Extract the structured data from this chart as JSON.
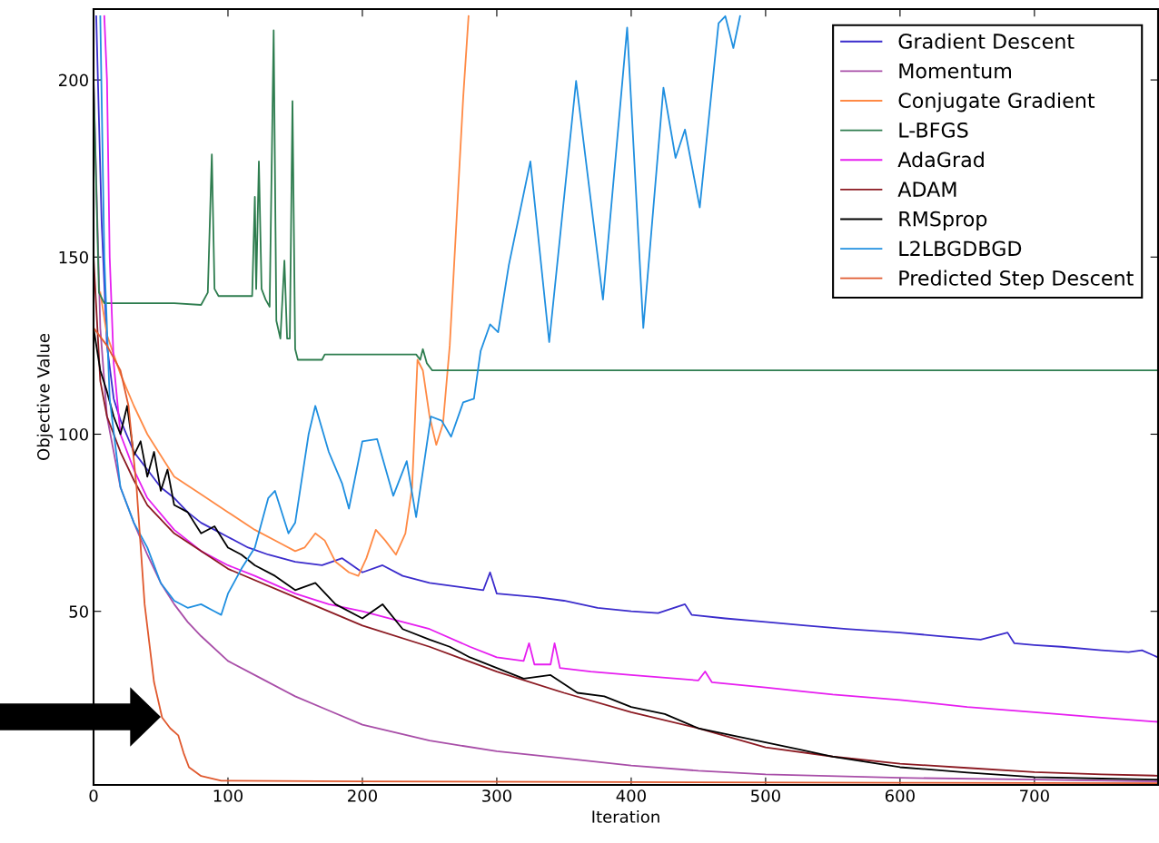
{
  "chart_data": {
    "type": "line",
    "xlabel": "Iteration",
    "ylabel": "Objective Value",
    "xlim": [
      0,
      792
    ],
    "ylim": [
      1,
      220
    ],
    "xticks": [
      0,
      100,
      200,
      300,
      400,
      500,
      600,
      700
    ],
    "yticks": [
      50,
      100,
      150,
      200
    ],
    "grid": false,
    "legend": "top right",
    "marker": "none",
    "line_style": "solid",
    "series": [
      {
        "name": "Gradient Descent",
        "color": "#3b2ccc",
        "x": [
          2,
          6,
          10,
          15,
          20,
          30,
          40,
          50,
          60,
          70,
          80,
          90,
          100,
          115,
          130,
          150,
          170,
          185,
          200,
          215,
          230,
          250,
          270,
          290,
          295,
          300,
          330,
          350,
          375,
          400,
          420,
          440,
          445,
          470,
          500,
          530,
          560,
          600,
          630,
          660,
          680,
          685,
          700,
          720,
          750,
          770,
          780,
          792
        ],
        "values": [
          218,
          160,
          125,
          110,
          104,
          95,
          90,
          85,
          82,
          78,
          75,
          73,
          71,
          68,
          66,
          64,
          63,
          65,
          61,
          63,
          60,
          58,
          57,
          56,
          61,
          55,
          54,
          53,
          51,
          50,
          49.5,
          52,
          49,
          48,
          47,
          46,
          45,
          44,
          43,
          42,
          44,
          41,
          40.5,
          40,
          39,
          38.5,
          39,
          37
        ]
      },
      {
        "name": "Momentum",
        "color": "#a84ea8",
        "x": [
          0,
          5,
          10,
          20,
          30,
          40,
          50,
          60,
          70,
          80,
          100,
          125,
          150,
          175,
          200,
          250,
          300,
          350,
          400,
          450,
          500,
          600,
          700,
          792
        ],
        "values": [
          200,
          130,
          105,
          85,
          75,
          66,
          58,
          52,
          47,
          43,
          36,
          31,
          26,
          22,
          18,
          13.5,
          10.5,
          8.5,
          6.5,
          5,
          4,
          3,
          2.5,
          2
        ]
      },
      {
        "name": "Conjugate Gradient",
        "color": "#ff8a45",
        "x": [
          5,
          10,
          20,
          30,
          40,
          60,
          80,
          100,
          120,
          140,
          150,
          157,
          165,
          172,
          180,
          190,
          197,
          203,
          210,
          217,
          225,
          232,
          237,
          241,
          245,
          250,
          255,
          260,
          265,
          270,
          275,
          279
        ],
        "values": [
          140,
          128,
          117,
          108,
          100,
          88,
          83,
          78,
          73,
          69,
          67,
          68,
          72,
          70,
          64,
          61,
          60,
          65,
          73,
          70,
          66,
          72,
          85,
          121,
          118,
          105,
          97,
          103,
          125,
          160,
          195,
          218
        ]
      },
      {
        "name": "L-BFGS",
        "color": "#2e7d4f",
        "x": [
          0,
          4,
          8,
          60,
          80,
          85,
          88,
          90,
          93,
          118,
          120,
          121,
          123,
          125,
          128,
          131,
          134,
          136,
          139,
          142,
          144,
          146,
          148,
          150,
          152,
          170,
          172,
          240,
          243,
          245,
          248,
          252,
          792
        ],
        "values": [
          200,
          140,
          137,
          137,
          136.5,
          140,
          179,
          141,
          139,
          139,
          167,
          141,
          177,
          141,
          138,
          136,
          214,
          132,
          127,
          149,
          127,
          127,
          194,
          124,
          121,
          121,
          122.5,
          122.5,
          121,
          124,
          120,
          118,
          118
        ]
      },
      {
        "name": "AdaGrad",
        "color": "#e61ef0",
        "x": [
          8,
          10,
          12,
          15,
          20,
          30,
          40,
          60,
          80,
          100,
          120,
          150,
          175,
          200,
          230,
          250,
          280,
          300,
          320,
          324,
          328,
          340,
          343,
          347,
          370,
          400,
          450,
          455,
          460,
          500,
          550,
          600,
          650,
          700,
          750,
          792
        ],
        "values": [
          218,
          200,
          150,
          120,
          100,
          90,
          82,
          73,
          67,
          63,
          60,
          55,
          52,
          50,
          47,
          45,
          40,
          37,
          36,
          41,
          35,
          35,
          41,
          34,
          33,
          32,
          30.5,
          33,
          30,
          28.5,
          26.5,
          25,
          23,
          21.5,
          20,
          18.8
        ]
      },
      {
        "name": "ADAM",
        "color": "#8b1a22",
        "x": [
          0,
          5,
          10,
          20,
          30,
          40,
          60,
          80,
          100,
          150,
          200,
          250,
          300,
          350,
          400,
          450,
          500,
          550,
          600,
          650,
          700,
          750,
          792
        ],
        "values": [
          150,
          115,
          105,
          95,
          87,
          80,
          72,
          67,
          62,
          54,
          46,
          40,
          33,
          27,
          21.5,
          17,
          11.6,
          9,
          7,
          5.8,
          4.6,
          4,
          3.6
        ]
      },
      {
        "name": "RMSprop",
        "color": "#000000",
        "x": [
          0,
          5,
          10,
          15,
          20,
          25,
          30,
          35,
          40,
          45,
          50,
          55,
          60,
          70,
          80,
          90,
          100,
          110,
          120,
          135,
          150,
          165,
          180,
          200,
          215,
          230,
          250,
          265,
          280,
          300,
          320,
          340,
          360,
          380,
          400,
          425,
          450,
          475,
          500,
          525,
          550,
          575,
          600,
          650,
          700,
          750,
          792
        ],
        "values": [
          130,
          118,
          112,
          105,
          100,
          108,
          94,
          98,
          88,
          95,
          84,
          90,
          80,
          78,
          72,
          74,
          68,
          66,
          63,
          60,
          56,
          58,
          52,
          48,
          52,
          45,
          42,
          40,
          37,
          34,
          31,
          32,
          27,
          26,
          23,
          21,
          17,
          15,
          13,
          11,
          9,
          7.5,
          6,
          4.5,
          3.2,
          2.8,
          2.5
        ]
      },
      {
        "name": "L2LBGDBGD",
        "color": "#1f8fe0",
        "x": [
          5,
          8,
          12,
          20,
          30,
          40,
          50,
          60,
          70,
          80,
          90,
          95,
          100,
          110,
          120,
          130,
          135,
          145,
          150,
          160,
          165,
          175,
          185,
          190,
          200,
          211,
          223,
          233,
          240,
          251,
          259,
          266,
          275,
          283,
          288,
          295,
          301,
          309,
          325,
          339,
          359,
          379,
          397,
          409,
          424,
          433,
          440,
          451,
          465,
          470,
          476,
          481
        ],
        "values": [
          218,
          150,
          110,
          85,
          75,
          68,
          58,
          53,
          51,
          52,
          50,
          49,
          55,
          62,
          68,
          82,
          84,
          72,
          75,
          100,
          108,
          95,
          86,
          79,
          98,
          98.6,
          82.6,
          92.4,
          76.6,
          105,
          103.8,
          99.3,
          109,
          110,
          123.5,
          131,
          128.8,
          147.8,
          177,
          126,
          199.7,
          138,
          214.8,
          130,
          197.8,
          178,
          186,
          164,
          216,
          218,
          209,
          218
        ]
      },
      {
        "name": "Predicted Step Descent",
        "color": "#e0592e",
        "x": [
          0,
          10,
          20,
          26,
          32,
          38,
          45,
          51,
          57,
          63,
          67,
          71,
          80,
          95,
          200,
          400,
          600,
          792
        ],
        "values": [
          130,
          125,
          118,
          108,
          85,
          52,
          30,
          20,
          17,
          15,
          10,
          6,
          3.5,
          2.2,
          2,
          1.8,
          1.6,
          1.5
        ]
      }
    ]
  }
}
